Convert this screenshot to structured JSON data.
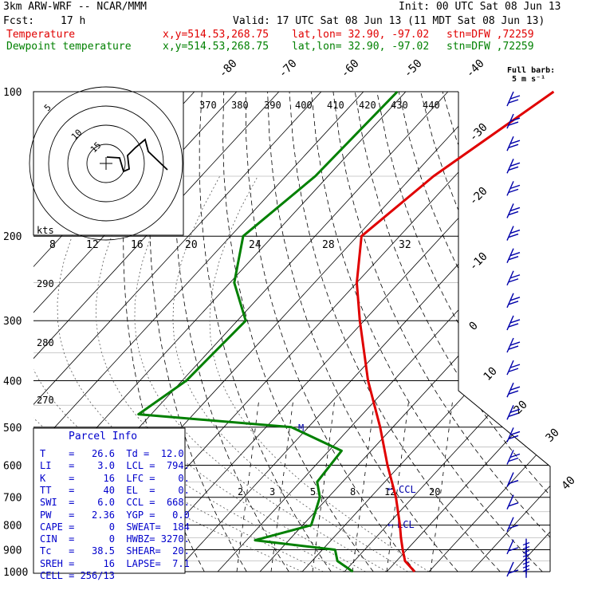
{
  "header": {
    "model": "3km ARW-WRF -- NCAR/MMM",
    "init": "Init: 00 UTC Sat 08 Jun 13",
    "fcst_label": "Fcst:",
    "fcst_value": "17 h",
    "valid": "Valid: 17 UTC Sat 08 Jun 13 (11 MDT Sat 08 Jun 13)",
    "temp_label": "Temperature",
    "dew_label": "Dewpoint temperature",
    "xy": "x,y=514.53,268.75",
    "latlon": "lat,lon= 32.90, -97.02",
    "stn": "stn=DFW ,72259"
  },
  "barb_legend": {
    "title": "Full barb:",
    "value": "5 m s⁻¹"
  },
  "hodo_label": "kts",
  "parcel_info": {
    "title": "Parcel Info",
    "rows": [
      "T    =   26.6  Td =  12.0",
      "LI   =    3.0  LCL =  794.",
      "K    =     16  LFC =    0.",
      "TT   =     40  EL  =    0.",
      "SWI  =    6.0  CCL =  668.",
      "PW   =   2.36  YGP =   0.0",
      "CAPE =      0  SWEAT=  184",
      "CIN  =      0  HWBZ= 3270.",
      "Tc   =   38.5  SHEAR=  20.",
      "SREH =     16  LAPSE=  7.1",
      "CELL = 256/13"
    ]
  },
  "chart_data": {
    "type": "line",
    "title": "",
    "pressure_levels": [
      "100",
      "200",
      "300",
      "400",
      "500",
      "600",
      "700",
      "800",
      "900",
      "1000"
    ],
    "isotherm_labels": [
      "-80",
      "-70",
      "-60",
      "-50",
      "-40",
      "-30",
      "-20",
      "-10",
      "0",
      "10",
      "20",
      "30",
      "40"
    ],
    "theta_labels_top": [
      "370",
      "380",
      "390",
      "400",
      "410",
      "420",
      "430",
      "440"
    ],
    "theta_labels_left": [
      "290",
      "280",
      "270"
    ],
    "mixing_ratio_labels": [
      "2",
      "3",
      "5",
      "8",
      "12",
      "20"
    ],
    "hodo_ring_labels": [
      "8",
      "12",
      "16",
      "20",
      "24",
      "28",
      "32"
    ],
    "annotations": {
      "ccl": "CCL",
      "lcl": "LCL",
      "m": "M"
    },
    "series": [
      {
        "name": "Temperature",
        "color": "#e00000",
        "points": [
          [
            100,
            -45
          ],
          [
            150,
            -55
          ],
          [
            200,
            -59
          ],
          [
            250,
            -50
          ],
          [
            300,
            -41
          ],
          [
            400,
            -26
          ],
          [
            500,
            -13
          ],
          [
            600,
            -3
          ],
          [
            700,
            6
          ],
          [
            800,
            13
          ],
          [
            850,
            16
          ],
          [
            900,
            19
          ],
          [
            950,
            22
          ],
          [
            1000,
            26.6
          ]
        ]
      },
      {
        "name": "Dewpoint temperature",
        "color": "#008000",
        "points": [
          [
            100,
            -82
          ],
          [
            150,
            -83
          ],
          [
            200,
            -87
          ],
          [
            250,
            -79
          ],
          [
            300,
            -68
          ],
          [
            400,
            -69
          ],
          [
            470,
            -73
          ],
          [
            500,
            -34
          ],
          [
            560,
            -17
          ],
          [
            650,
            -16
          ],
          [
            700,
            -12
          ],
          [
            800,
            -8
          ],
          [
            860,
            -18
          ],
          [
            900,
            3
          ],
          [
            950,
            6
          ],
          [
            1000,
            12.0
          ]
        ]
      }
    ],
    "xlabel": "",
    "ylabel": "",
    "ylim": [
      100,
      1000
    ]
  },
  "colors": {
    "temperature": "#e00000",
    "dewpoint": "#008000",
    "barbs": "#0000aa",
    "parcel": "#0000cc"
  }
}
